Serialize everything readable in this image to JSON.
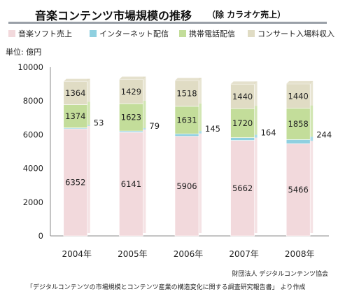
{
  "chart_data": {
    "type": "bar",
    "stacked": true,
    "title": "音楽コンテンツ市場規模の推移",
    "subtitle": "（除 カラオケ売上）",
    "unit_label": "単位: 億円",
    "categories": [
      "2004年",
      "2005年",
      "2006年",
      "2007年",
      "2008年"
    ],
    "series": [
      {
        "name": "音楽ソフト売上",
        "color": "#f2d9dc",
        "values": [
          6352,
          6141,
          5906,
          5662,
          5466
        ]
      },
      {
        "name": "インターネット配信",
        "color": "#8fd0e0",
        "values": [
          53,
          79,
          145,
          164,
          244
        ]
      },
      {
        "name": "携帯電話配信",
        "color": "#c3dd9a",
        "values": [
          1374,
          1623,
          1631,
          1720,
          1858
        ]
      },
      {
        "name": "コンサート入場料収入",
        "color": "#e0dcc4",
        "values": [
          1364,
          1429,
          1518,
          1440,
          1440
        ]
      }
    ],
    "ylim": [
      0,
      10000
    ],
    "yticks": [
      0,
      2000,
      4000,
      6000,
      8000,
      10000
    ],
    "legend_position": "top",
    "grid": false
  },
  "source": {
    "line1": "財団法人 デジタルコンテンツ協会",
    "line2": "「デジタルコンテンツの市場規模とコンテンツ産業の構造変化に関する調査研究報告書」 より作成"
  }
}
